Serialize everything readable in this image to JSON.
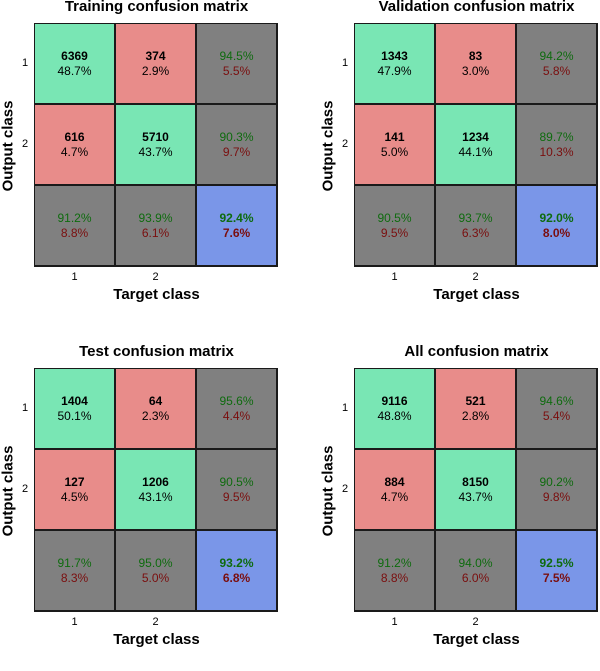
{
  "chart_data": [
    {
      "type": "heatmap",
      "title": "Training confusion matrix",
      "xlabel": "Target class",
      "ylabel": "Output class",
      "x_ticks": [
        "1",
        "2"
      ],
      "y_ticks": [
        "1",
        "2"
      ],
      "cells": [
        {
          "count": "6369",
          "pct": "48.7%"
        },
        {
          "count": "374",
          "pct": "2.9%"
        },
        {
          "count": "616",
          "pct": "4.7%"
        },
        {
          "count": "5710",
          "pct": "43.7%"
        }
      ],
      "row_summary": [
        {
          "correct": "94.5%",
          "wrong": "5.5%"
        },
        {
          "correct": "90.3%",
          "wrong": "9.7%"
        }
      ],
      "col_summary": [
        {
          "correct": "91.2%",
          "wrong": "8.8%"
        },
        {
          "correct": "93.9%",
          "wrong": "6.1%"
        }
      ],
      "overall": {
        "correct": "92.4%",
        "wrong": "7.6%"
      }
    },
    {
      "type": "heatmap",
      "title": "Validation confusion matrix",
      "xlabel": "Target class",
      "ylabel": "Output class",
      "x_ticks": [
        "1",
        "2"
      ],
      "y_ticks": [
        "1",
        "2"
      ],
      "cells": [
        {
          "count": "1343",
          "pct": "47.9%"
        },
        {
          "count": "83",
          "pct": "3.0%"
        },
        {
          "count": "141",
          "pct": "5.0%"
        },
        {
          "count": "1234",
          "pct": "44.1%"
        }
      ],
      "row_summary": [
        {
          "correct": "94.2%",
          "wrong": "5.8%"
        },
        {
          "correct": "89.7%",
          "wrong": "10.3%"
        }
      ],
      "col_summary": [
        {
          "correct": "90.5%",
          "wrong": "9.5%"
        },
        {
          "correct": "93.7%",
          "wrong": "6.3%"
        }
      ],
      "overall": {
        "correct": "92.0%",
        "wrong": "8.0%"
      }
    },
    {
      "type": "heatmap",
      "title": "Test confusion matrix",
      "xlabel": "Target class",
      "ylabel": "Output class",
      "x_ticks": [
        "1",
        "2"
      ],
      "y_ticks": [
        "1",
        "2"
      ],
      "cells": [
        {
          "count": "1404",
          "pct": "50.1%"
        },
        {
          "count": "64",
          "pct": "2.3%"
        },
        {
          "count": "127",
          "pct": "4.5%"
        },
        {
          "count": "1206",
          "pct": "43.1%"
        }
      ],
      "row_summary": [
        {
          "correct": "95.6%",
          "wrong": "4.4%"
        },
        {
          "correct": "90.5%",
          "wrong": "9.5%"
        }
      ],
      "col_summary": [
        {
          "correct": "91.7%",
          "wrong": "8.3%"
        },
        {
          "correct": "95.0%",
          "wrong": "5.0%"
        }
      ],
      "overall": {
        "correct": "93.2%",
        "wrong": "6.8%"
      }
    },
    {
      "type": "heatmap",
      "title": "All confusion matrix",
      "xlabel": "Target class",
      "ylabel": "Output class",
      "x_ticks": [
        "1",
        "2"
      ],
      "y_ticks": [
        "1",
        "2"
      ],
      "cells": [
        {
          "count": "9116",
          "pct": "48.8%"
        },
        {
          "count": "521",
          "pct": "2.8%"
        },
        {
          "count": "884",
          "pct": "4.7%"
        },
        {
          "count": "8150",
          "pct": "43.7%"
        }
      ],
      "row_summary": [
        {
          "correct": "94.6%",
          "wrong": "5.4%"
        },
        {
          "correct": "90.2%",
          "wrong": "9.8%"
        }
      ],
      "col_summary": [
        {
          "correct": "91.2%",
          "wrong": "8.8%"
        },
        {
          "correct": "94.0%",
          "wrong": "6.0%"
        }
      ],
      "overall": {
        "correct": "92.5%",
        "wrong": "7.5%"
      }
    }
  ]
}
